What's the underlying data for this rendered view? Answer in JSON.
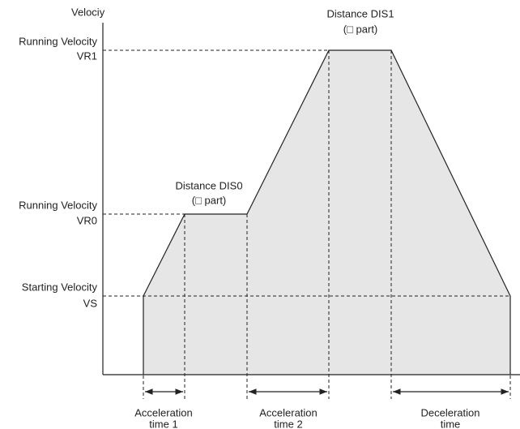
{
  "axis_label": "Velociy",
  "velocity_levels": [
    {
      "label": "Running Velocity",
      "code": "VR1"
    },
    {
      "label": "Running Velocity",
      "code": "VR0"
    },
    {
      "label": "Starting Velocity",
      "code": "VS"
    }
  ],
  "distances": [
    {
      "label": "Distance DIS1",
      "note": "(□ part)"
    },
    {
      "label": "Distance DIS0",
      "note": "(□ part)"
    }
  ],
  "time_periods": [
    {
      "label": "Acceleration",
      "sub": "time 1"
    },
    {
      "label": "Acceleration",
      "sub": "time 2"
    },
    {
      "label": "Deceleration",
      "sub": "time"
    }
  ]
}
